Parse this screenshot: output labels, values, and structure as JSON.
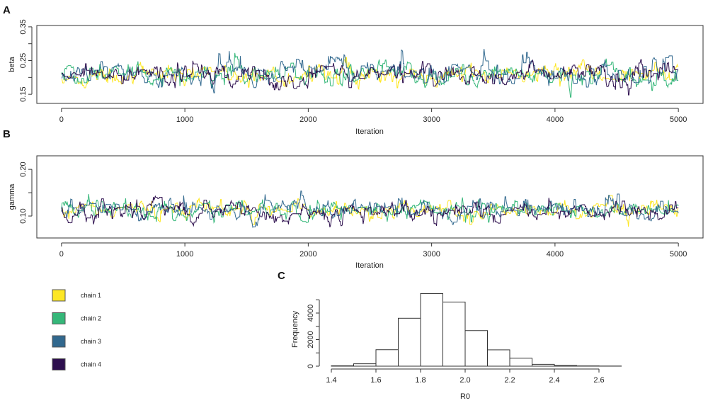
{
  "chart_data": [
    {
      "panel": "A",
      "type": "line",
      "xlabel": "Iteration",
      "ylabel": "beta",
      "xlim": [
        -200,
        5200
      ],
      "ylim": [
        0.123,
        0.354
      ],
      "xticks": [
        "0",
        "1000",
        "2000",
        "3000",
        "4000",
        "5000"
      ],
      "yticks": [
        "0.15",
        "0.25",
        "0.35"
      ],
      "series": [
        {
          "name": "chain 1",
          "color": "#FDE725"
        },
        {
          "name": "chain 2",
          "color": "#35B779"
        },
        {
          "name": "chain 3",
          "color": "#31688E"
        },
        {
          "name": "chain 4",
          "color": "#2D0F4E"
        }
      ]
    },
    {
      "panel": "B",
      "type": "line",
      "xlabel": "Iteration",
      "ylabel": "gamma",
      "xlim": [
        -200,
        5200
      ],
      "ylim": [
        0.053,
        0.229
      ],
      "xticks": [
        "0",
        "1000",
        "2000",
        "3000",
        "4000",
        "5000"
      ],
      "yticks": [
        "0.10",
        "0.20"
      ],
      "series": [
        {
          "name": "chain 1",
          "color": "#FDE725"
        },
        {
          "name": "chain 2",
          "color": "#35B779"
        },
        {
          "name": "chain 3",
          "color": "#31688E"
        },
        {
          "name": "chain 4",
          "color": "#2D0F4E"
        }
      ]
    },
    {
      "panel": "C",
      "type": "bar",
      "xlabel": "R0",
      "ylabel": "Frequency",
      "bin_edges": [
        1.4,
        1.5,
        1.6,
        1.7,
        1.8,
        1.9,
        2.0,
        2.1,
        2.2,
        2.3,
        2.4,
        2.5,
        2.6,
        2.7
      ],
      "values": [
        30,
        180,
        1240,
        3610,
        5470,
        4830,
        2680,
        1230,
        600,
        140,
        50,
        20,
        10
      ],
      "xticks": [
        "1.4",
        "1.6",
        "1.8",
        "2.0",
        "2.2",
        "2.4",
        "2.6"
      ],
      "yticks": [
        "0",
        "2000",
        "4000"
      ],
      "ylim": [
        0,
        5500
      ]
    }
  ],
  "legend": [
    {
      "label": "chain 1",
      "color": "#FDE725"
    },
    {
      "label": "chain 2",
      "color": "#35B779"
    },
    {
      "label": "chain 3",
      "color": "#31688E"
    },
    {
      "label": "chain 4",
      "color": "#2D0F4E"
    }
  ]
}
